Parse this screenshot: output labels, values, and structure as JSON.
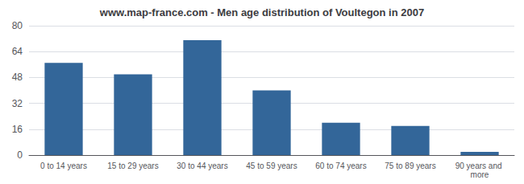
{
  "chart_data": {
    "type": "bar",
    "title": "www.map-france.com - Men age distribution of Voultegon in 2007",
    "categories": [
      "0 to 14 years",
      "15 to 29 years",
      "30 to 44 years",
      "45 to 59 years",
      "60 to 74 years",
      "75 to 89 years",
      "90 years and more"
    ],
    "values": [
      57,
      50,
      71,
      40,
      20,
      18,
      2
    ],
    "color": "#336699",
    "ylim": [
      0,
      80
    ],
    "yticks": [
      0,
      16,
      32,
      48,
      64,
      80
    ],
    "grid": true
  }
}
